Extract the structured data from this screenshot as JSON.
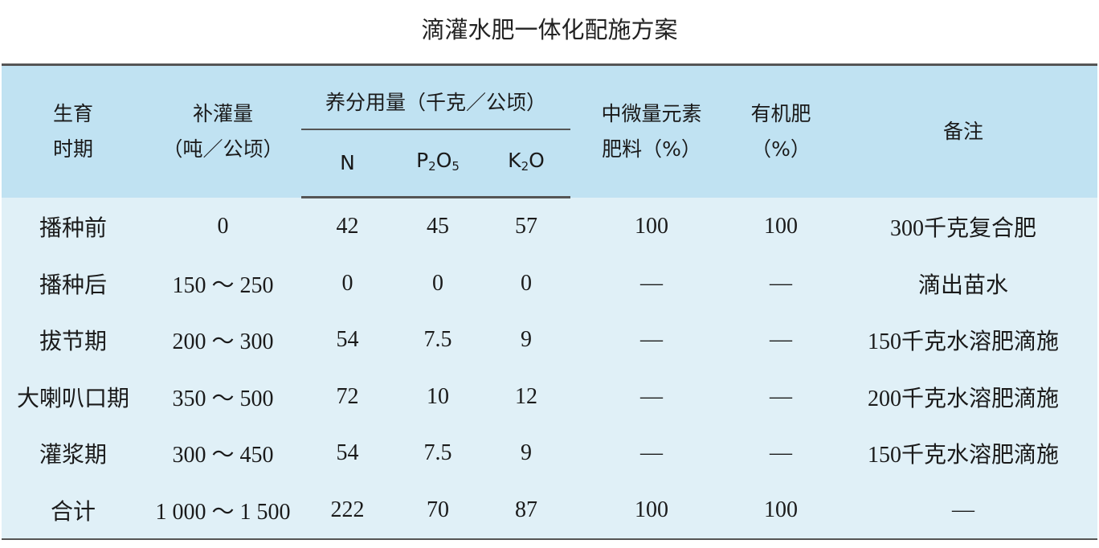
{
  "title": "滴灌水肥一体化配施方案",
  "header": {
    "period": [
      "生育",
      "时期"
    ],
    "irrigation": [
      "补灌量",
      "（吨／公顷）"
    ],
    "nutrient_group": "养分用量（千克／公顷）",
    "n": "N",
    "p_main": "P",
    "p_sub": "2",
    "p_o": "O",
    "p_sub2": "5",
    "k_main": "K",
    "k_sub": "2",
    "k_o": "O",
    "micro": [
      "中微量元素",
      "肥料（%）"
    ],
    "organic": [
      "有机肥",
      "（%）"
    ],
    "remark": "备注"
  },
  "rows": [
    {
      "period": "播种前",
      "irrigation": "0",
      "n": "42",
      "p": "45",
      "k": "57",
      "micro": "100",
      "organic": "100",
      "remark": "300千克复合肥"
    },
    {
      "period": "播种后",
      "irrigation": "150 ～ 250",
      "n": "0",
      "p": "0",
      "k": "0",
      "micro": "—",
      "organic": "—",
      "remark": "滴出苗水"
    },
    {
      "period": "拔节期",
      "irrigation": "200 ～ 300",
      "n": "54",
      "p": "7.5",
      "k": "9",
      "micro": "—",
      "organic": "—",
      "remark": "150千克水溶肥滴施"
    },
    {
      "period": "大喇叭口期",
      "irrigation": "350 ～ 500",
      "n": "72",
      "p": "10",
      "k": "12",
      "micro": "—",
      "organic": "—",
      "remark": "200千克水溶肥滴施"
    },
    {
      "period": "灌浆期",
      "irrigation": "300 ～ 450",
      "n": "54",
      "p": "7.5",
      "k": "9",
      "micro": "—",
      "organic": "—",
      "remark": "150千克水溶肥滴施"
    },
    {
      "period": "合计",
      "irrigation": "1 000 ～ 1 500",
      "n": "222",
      "p": "70",
      "k": "87",
      "micro": "100",
      "organic": "100",
      "remark": "—"
    }
  ],
  "colors": {
    "header_bg": "#c0e2f2",
    "body_bg": "#e0f0f7",
    "rule": "#555555"
  }
}
